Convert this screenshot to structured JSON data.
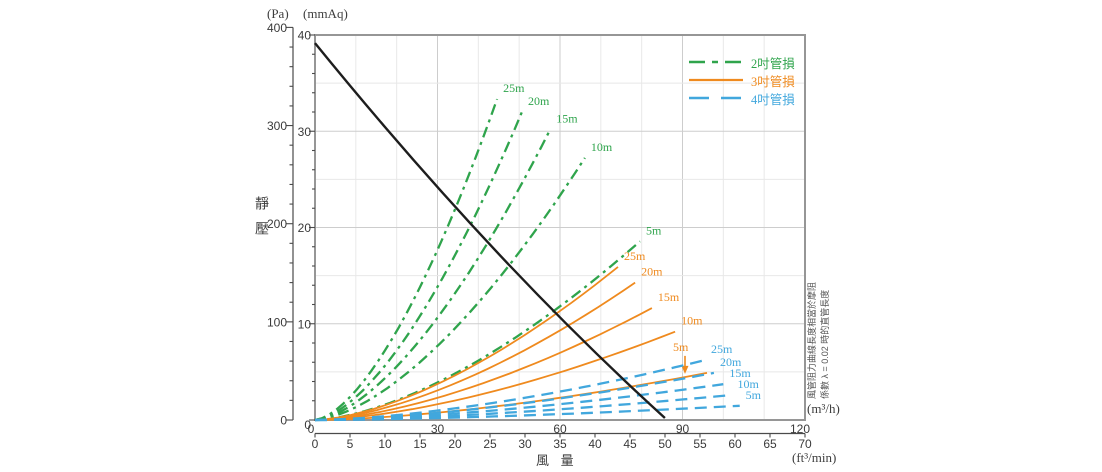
{
  "units": {
    "pa": "(Pa)",
    "mmaq": "(mmAq)",
    "m3h": "(m³/h)",
    "ft3min": "(ft³/min)"
  },
  "axis_titles": {
    "y": "靜壓",
    "x": "風 量"
  },
  "side_note": {
    "line1": "風管阻力曲線長度相當於摩阻",
    "line2": "係數 λ = 0.02 時的直管長度"
  },
  "legend": {
    "position": "top-right",
    "items": [
      {
        "label": "2吋管損",
        "color": "#2fa44c",
        "dash": [
          16,
          7,
          6,
          7
        ]
      },
      {
        "label": "3吋管損",
        "color": "#ef8a1e",
        "dash": []
      },
      {
        "label": "4吋管損",
        "color": "#41a7dd",
        "dash": [
          20,
          12
        ]
      }
    ]
  },
  "chart_data": {
    "type": "line",
    "title": "",
    "grid": true,
    "x_axis_m3h": {
      "unit": "(m³/h)",
      "min": 0,
      "max": 120,
      "tick_labels": [
        0,
        30,
        60,
        90,
        120
      ],
      "grid_minor_step": 10,
      "grid_major_step": 30
    },
    "x_axis_ft3min": {
      "unit": "(ft³/min)",
      "min": 0,
      "max": 70,
      "tick_labels": [
        0,
        5,
        10,
        15,
        20,
        25,
        30,
        35,
        40,
        45,
        50,
        55,
        60,
        65,
        70
      ]
    },
    "y_axis_pa": {
      "unit": "(Pa)",
      "min": 0,
      "max": 400,
      "tick_labels": [
        400,
        300,
        200,
        100,
        0
      ],
      "minor_tick_step": 20,
      "major_tick_step": 100
    },
    "y_axis_mmaq": {
      "unit": "(mmAq)",
      "min": 0,
      "max": 40,
      "tick_labels": [
        40,
        30,
        20,
        10
      ],
      "minor_tick_step": 2,
      "grid_minor_step": 5,
      "grid_major_step": 10
    },
    "fan_curve": {
      "name": "fan-performance-curve",
      "color": "#1d1d1d",
      "points_q_pa": [
        [
          0,
          384
        ],
        [
          43,
          178
        ],
        [
          85.7,
          2
        ]
      ]
    },
    "curve_exponent": 1.6,
    "series": [
      {
        "name": "2吋管損",
        "color": "#2fa44c",
        "style": "dash-dot",
        "dash": [
          11,
          5,
          3,
          5
        ],
        "curves": [
          {
            "label": "25m",
            "q_end": 44.6,
            "pa_end": 327
          },
          {
            "label": "20m",
            "q_end": 50.7,
            "pa_end": 314
          },
          {
            "label": "15m",
            "q_end": 57.6,
            "pa_end": 296
          },
          {
            "label": "10m",
            "q_end": 66.1,
            "pa_end": 267
          },
          {
            "label": "5m",
            "q_end": 79.6,
            "pa_end": 182
          }
        ]
      },
      {
        "name": "3吋管損",
        "color": "#ef8a1e",
        "style": "solid",
        "dash": [],
        "curves": [
          {
            "label": "25m",
            "q_end": 74.2,
            "pa_end": 156
          },
          {
            "label": "20m",
            "q_end": 78.4,
            "pa_end": 140
          },
          {
            "label": "15m",
            "q_end": 82.5,
            "pa_end": 114
          },
          {
            "label": "10m",
            "q_end": 88.2,
            "pa_end": 90
          },
          {
            "label": "5m",
            "q_end": 96,
            "pa_end": 48,
            "label_dx": -34,
            "label_dy": -22,
            "arrow": true
          }
        ]
      },
      {
        "name": "4吋管損",
        "color": "#41a7dd",
        "style": "dashed",
        "dash": [
          12,
          7
        ],
        "curves": [
          {
            "label": "25m",
            "q_end": 95.5,
            "pa_end": 61
          },
          {
            "label": "20m",
            "q_end": 97.7,
            "pa_end": 48
          },
          {
            "label": "15m",
            "q_end": 100,
            "pa_end": 36.5
          },
          {
            "label": "10m",
            "q_end": 102,
            "pa_end": 25.5
          },
          {
            "label": "5m",
            "q_end": 104,
            "pa_end": 14.5
          }
        ]
      }
    ]
  }
}
